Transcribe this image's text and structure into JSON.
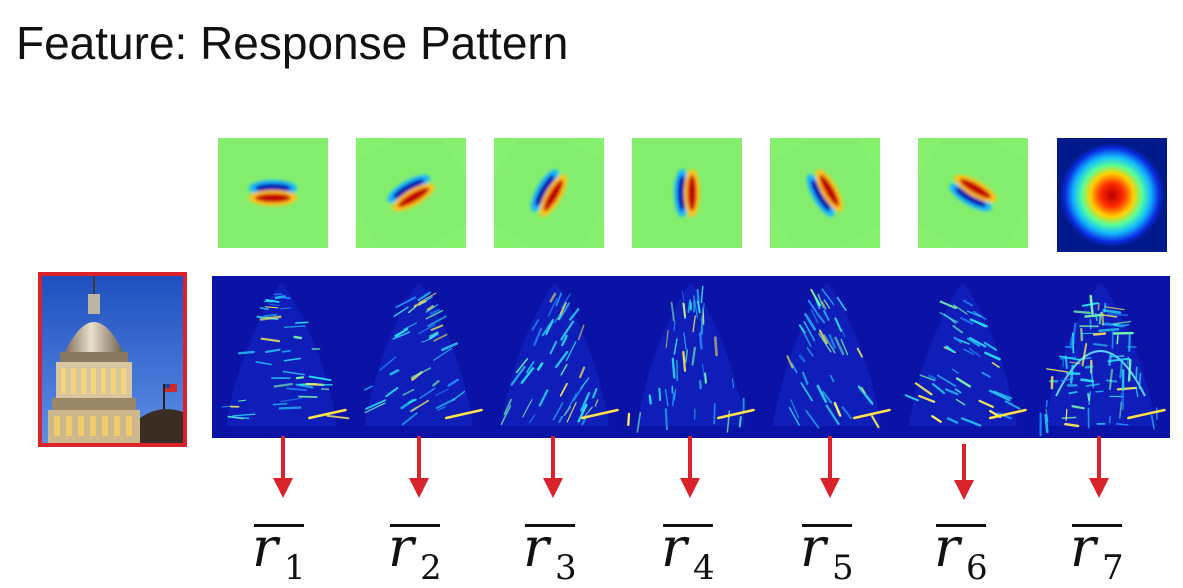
{
  "slide": {
    "title": "Feature: Response Pattern"
  },
  "colors": {
    "accent_red": "#d9222a",
    "filter_background": "#86f06f",
    "response_background": "#0a13a6"
  },
  "input_image": {
    "subject": "capitol-dome-photo"
  },
  "filters": [
    {
      "id": 1,
      "kind": "oriented-edge",
      "orientation_deg": 0
    },
    {
      "id": 2,
      "kind": "oriented-edge",
      "orientation_deg": 30
    },
    {
      "id": 3,
      "kind": "oriented-edge",
      "orientation_deg": 60
    },
    {
      "id": 4,
      "kind": "oriented-edge",
      "orientation_deg": 90
    },
    {
      "id": 5,
      "kind": "oriented-edge",
      "orientation_deg": 120
    },
    {
      "id": 6,
      "kind": "oriented-edge",
      "orientation_deg": 150
    },
    {
      "id": 7,
      "kind": "center-surround",
      "orientation_deg": null
    }
  ],
  "responses": [
    {
      "base": "r",
      "sub": "1"
    },
    {
      "base": "r",
      "sub": "2"
    },
    {
      "base": "r",
      "sub": "3"
    },
    {
      "base": "r",
      "sub": "4"
    },
    {
      "base": "r",
      "sub": "5"
    },
    {
      "base": "r",
      "sub": "6"
    },
    {
      "base": "r",
      "sub": "7"
    }
  ]
}
